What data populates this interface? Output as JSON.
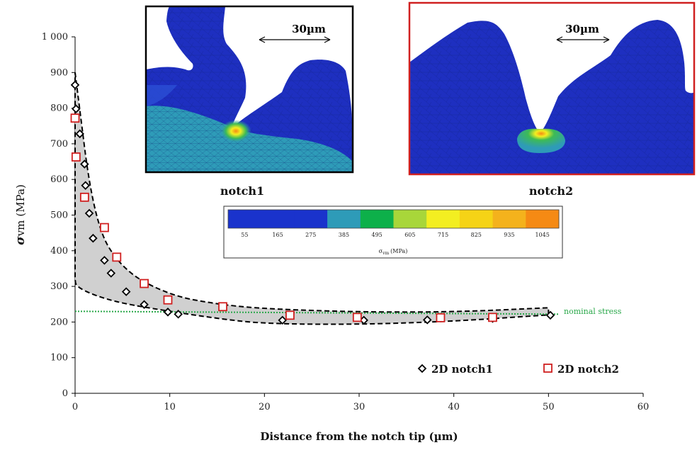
{
  "chart_data": {
    "type": "scatter",
    "xlabel": "Distance from the notch tip (µm)",
    "ylabel_symbol": "σ",
    "ylabel_sub": "vm",
    "ylabel_unit": "(MPa)",
    "xlim": [
      0,
      60
    ],
    "ylim": [
      0,
      1000
    ],
    "x_ticks": [
      0,
      10,
      20,
      30,
      40,
      50,
      60
    ],
    "y_ticks": [
      0,
      100,
      200,
      300,
      400,
      500,
      600,
      700,
      800,
      900,
      1000
    ],
    "y_tick_labels": [
      "0",
      "100",
      "200",
      "300",
      "400",
      "500",
      "600",
      "700",
      "800",
      "900",
      "1 000"
    ],
    "grid": false,
    "legend_position": "bottom-right",
    "series": [
      {
        "name": "2D notch1",
        "marker": "diamond",
        "color": "#000000",
        "x": [
          0.0,
          0.1,
          0.5,
          1.0,
          1.1,
          1.5,
          1.9,
          3.1,
          3.8,
          5.4,
          7.3,
          9.8,
          10.9,
          21.9,
          30.5,
          37.2,
          44.1,
          50.2
        ],
        "y": [
          865,
          798,
          728,
          643,
          583,
          505,
          435,
          373,
          337,
          285,
          249,
          228,
          222,
          205,
          205,
          206,
          210,
          219
        ]
      },
      {
        "name": "2D notch2",
        "marker": "square",
        "color": "#d02020",
        "x": [
          0.0,
          0.1,
          1.0,
          3.1,
          4.4,
          7.3,
          9.8,
          15.6,
          22.7,
          29.8,
          38.6,
          44.1
        ],
        "y": [
          772,
          663,
          550,
          465,
          382,
          308,
          262,
          243,
          219,
          213,
          212,
          213
        ]
      }
    ],
    "envelope": {
      "upper": {
        "x": [
          0,
          2,
          5,
          10,
          15,
          20,
          30,
          40,
          50
        ],
        "y": [
          900,
          480,
          345,
          275,
          250,
          237,
          228,
          228,
          240
        ]
      },
      "lower": {
        "x": [
          0,
          0.1,
          2,
          5,
          10,
          15,
          20,
          30,
          40,
          50
        ],
        "y": [
          320,
          300,
          275,
          252,
          230,
          210,
          195,
          193,
          202,
          220
        ]
      },
      "color": "#d0d0d0"
    },
    "reference_line": {
      "label": "nominal stress",
      "y_start": 230,
      "y_end": 222,
      "color": "#2aa84a"
    }
  },
  "insets": [
    {
      "title": "notch1",
      "scale_bar": "30µm",
      "border": "#000000"
    },
    {
      "title": "notch2",
      "scale_bar": "30µm",
      "border": "#d02020"
    }
  ],
  "colorbar": {
    "ticks": [
      "55",
      "165",
      "275",
      "385",
      "495",
      "605",
      "715",
      "825",
      "935",
      "1045"
    ],
    "colors": [
      "#1a33cc",
      "#1a33cc",
      "#1a33cc",
      "#2e9bb8",
      "#0db04a",
      "#a8d63a",
      "#f3ee21",
      "#f5d316",
      "#f4b21c",
      "#f58a14"
    ],
    "label_symbol": "σ",
    "label_sub": "vm",
    "label_unit": "(MPa)"
  }
}
